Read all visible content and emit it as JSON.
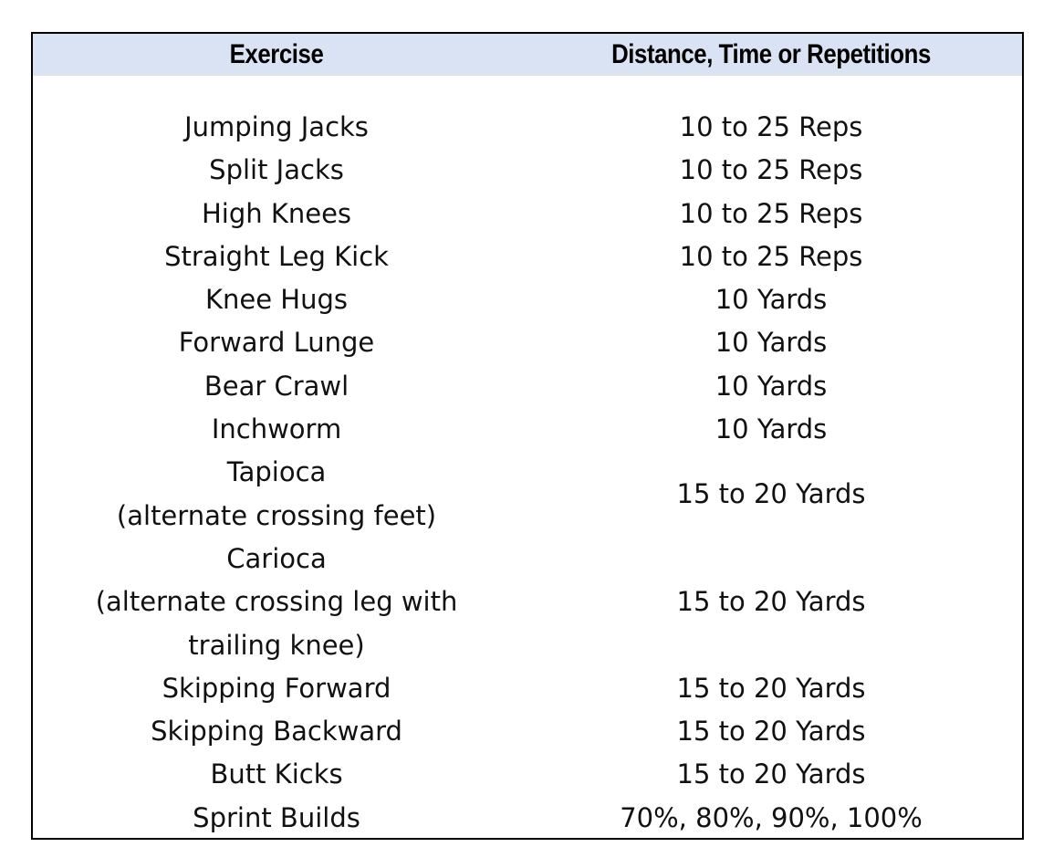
{
  "table": {
    "headers": {
      "exercise": "Exercise",
      "amount": "Distance, Time or Repetitions"
    },
    "rows": [
      {
        "exercise": "Jumping Jacks",
        "amount": "10 to 25 Reps"
      },
      {
        "exercise": "Split Jacks",
        "amount": "10 to 25 Reps"
      },
      {
        "exercise": "High Knees",
        "amount": "10 to 25 Reps"
      },
      {
        "exercise": "Straight Leg Kick",
        "amount": "10 to 25 Reps"
      },
      {
        "exercise": "Knee Hugs",
        "amount": "10 Yards"
      },
      {
        "exercise": "Forward Lunge",
        "amount": "10 Yards"
      },
      {
        "exercise": "Bear Crawl",
        "amount": "10 Yards"
      },
      {
        "exercise": "Inchworm",
        "amount": "10 Yards"
      },
      {
        "exercise": "Tapioca\n(alternate crossing feet)",
        "amount": "15 to 20 Yards"
      },
      {
        "exercise": "Carioca\n(alternate crossing leg with\ntrailing knee)",
        "amount": "15 to 20 Yards"
      },
      {
        "exercise": "Skipping Forward",
        "amount": "15 to 20 Yards"
      },
      {
        "exercise": "Skipping Backward",
        "amount": "15 to 20 Yards"
      },
      {
        "exercise": "Butt Kicks",
        "amount": "15 to 20 Yards"
      },
      {
        "exercise": "Sprint Builds",
        "amount": "70%, 80%, 90%, 100%"
      }
    ]
  }
}
